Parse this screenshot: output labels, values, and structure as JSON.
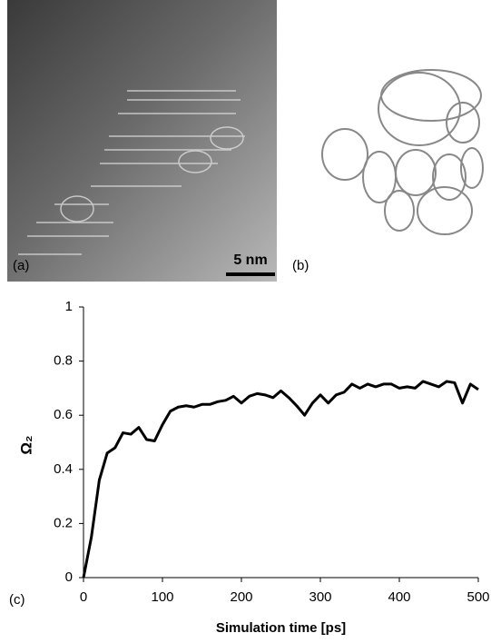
{
  "panel_a": {
    "label": "(a)",
    "scale_bar": "5 nm"
  },
  "panel_b": {
    "label": "(b)"
  },
  "chart_data": {
    "type": "line",
    "label": "(c)",
    "xlabel": "Simulation time [ps]",
    "ylabel": "Ω₂",
    "x": [
      0,
      10,
      20,
      30,
      40,
      50,
      60,
      70,
      80,
      90,
      100,
      110,
      120,
      130,
      140,
      150,
      160,
      170,
      180,
      190,
      200,
      210,
      220,
      230,
      240,
      250,
      260,
      270,
      280,
      290,
      300,
      310,
      320,
      330,
      340,
      350,
      360,
      370,
      380,
      390,
      400,
      410,
      420,
      430,
      440,
      450,
      460,
      470,
      480,
      490,
      500
    ],
    "values": [
      0,
      0.15,
      0.36,
      0.46,
      0.48,
      0.535,
      0.53,
      0.555,
      0.51,
      0.505,
      0.565,
      0.615,
      0.63,
      0.635,
      0.63,
      0.64,
      0.64,
      0.65,
      0.655,
      0.67,
      0.645,
      0.67,
      0.68,
      0.675,
      0.665,
      0.69,
      0.665,
      0.635,
      0.6,
      0.645,
      0.675,
      0.645,
      0.675,
      0.685,
      0.715,
      0.7,
      0.715,
      0.705,
      0.715,
      0.715,
      0.7,
      0.705,
      0.7,
      0.725,
      0.715,
      0.705,
      0.725,
      0.72,
      0.645,
      0.715,
      0.695
    ],
    "color": "#000000",
    "xlim": [
      0,
      500
    ],
    "xticks": [
      0,
      100,
      200,
      300,
      400,
      500
    ],
    "ylim": [
      0,
      1
    ],
    "yticks": [
      0,
      0.2,
      0.4,
      0.6,
      0.8,
      1
    ],
    "grid": false
  }
}
